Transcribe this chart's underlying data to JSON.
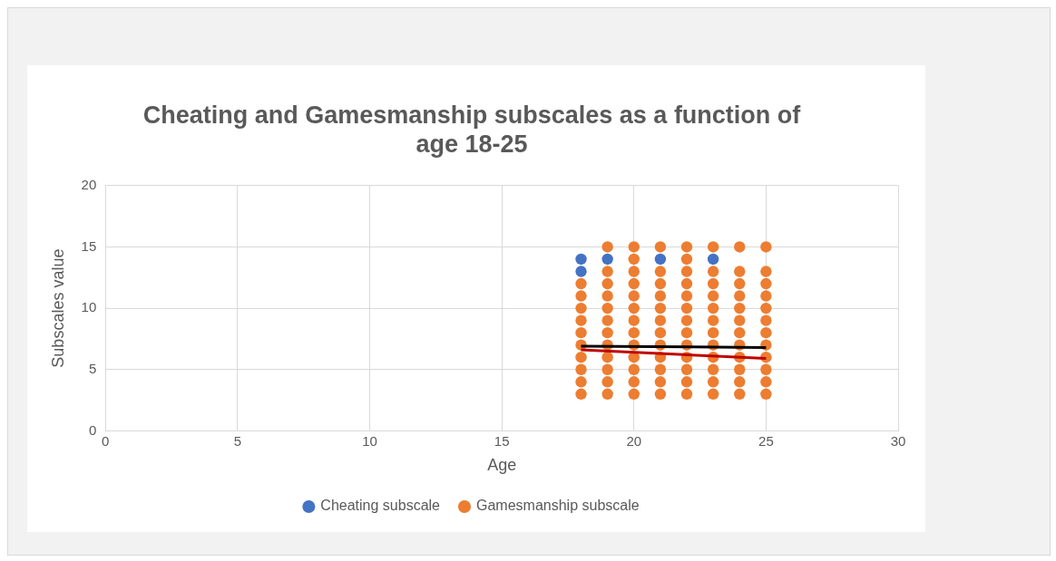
{
  "chart_data": {
    "type": "scatter",
    "title": [
      "Cheating and Gamesmanship subscales as a function of",
      "age 18-25"
    ],
    "xlabel": "Age",
    "ylabel": "Subscales value",
    "xlim": [
      0,
      30
    ],
    "xticks": [
      0,
      5,
      10,
      15,
      20,
      25,
      30
    ],
    "ylim": [
      0,
      20
    ],
    "yticks": [
      0,
      5,
      10,
      15,
      20
    ],
    "grid": true,
    "legend": "bottom",
    "marker": "circle",
    "series": [
      {
        "name": "Cheating subscale",
        "color": "#4472c4",
        "x": [
          18,
          18,
          19,
          21,
          23
        ],
        "values": [
          13,
          14,
          14,
          14,
          14
        ]
      },
      {
        "name": "Gamesmanship subscale",
        "color": "#ed7d31",
        "x": [
          18,
          18,
          18,
          18,
          18,
          18,
          18,
          18,
          18,
          18,
          19,
          19,
          19,
          19,
          19,
          19,
          19,
          19,
          19,
          19,
          19,
          19,
          20,
          20,
          20,
          20,
          20,
          20,
          20,
          20,
          20,
          20,
          20,
          20,
          20,
          21,
          21,
          21,
          21,
          21,
          21,
          21,
          21,
          21,
          21,
          21,
          21,
          22,
          22,
          22,
          22,
          22,
          22,
          22,
          22,
          22,
          22,
          22,
          22,
          22,
          23,
          23,
          23,
          23,
          23,
          23,
          23,
          23,
          23,
          23,
          23,
          23,
          24,
          24,
          24,
          24,
          24,
          24,
          24,
          24,
          24,
          24,
          24,
          24,
          25,
          25,
          25,
          25,
          25,
          25,
          25,
          25,
          25,
          25,
          25,
          25
        ],
        "values": [
          3,
          4,
          5,
          6,
          7,
          8,
          9,
          10,
          11,
          12,
          3,
          4,
          5,
          6,
          7,
          8,
          9,
          10,
          11,
          12,
          13,
          15,
          3,
          4,
          5,
          6,
          7,
          8,
          9,
          10,
          11,
          12,
          13,
          14,
          15,
          3,
          4,
          5,
          6,
          7,
          8,
          9,
          10,
          11,
          12,
          13,
          15,
          3,
          4,
          5,
          6,
          7,
          8,
          9,
          10,
          11,
          12,
          13,
          14,
          15,
          3,
          4,
          5,
          6,
          7,
          8,
          9,
          10,
          11,
          12,
          13,
          15,
          3,
          4,
          5,
          6,
          7,
          8,
          9,
          10,
          11,
          12,
          13,
          15,
          3,
          4,
          5,
          6,
          7,
          8,
          9,
          10,
          11,
          12,
          13,
          15
        ]
      },
      {
        "type": "line",
        "marker": "none",
        "color": "#c00000",
        "x": [
          18,
          25
        ],
        "values": [
          6.6,
          5.9
        ]
      },
      {
        "type": "line",
        "marker": "none",
        "color": "#000000",
        "x": [
          18,
          25
        ],
        "values": [
          6.9,
          6.8
        ]
      }
    ]
  }
}
